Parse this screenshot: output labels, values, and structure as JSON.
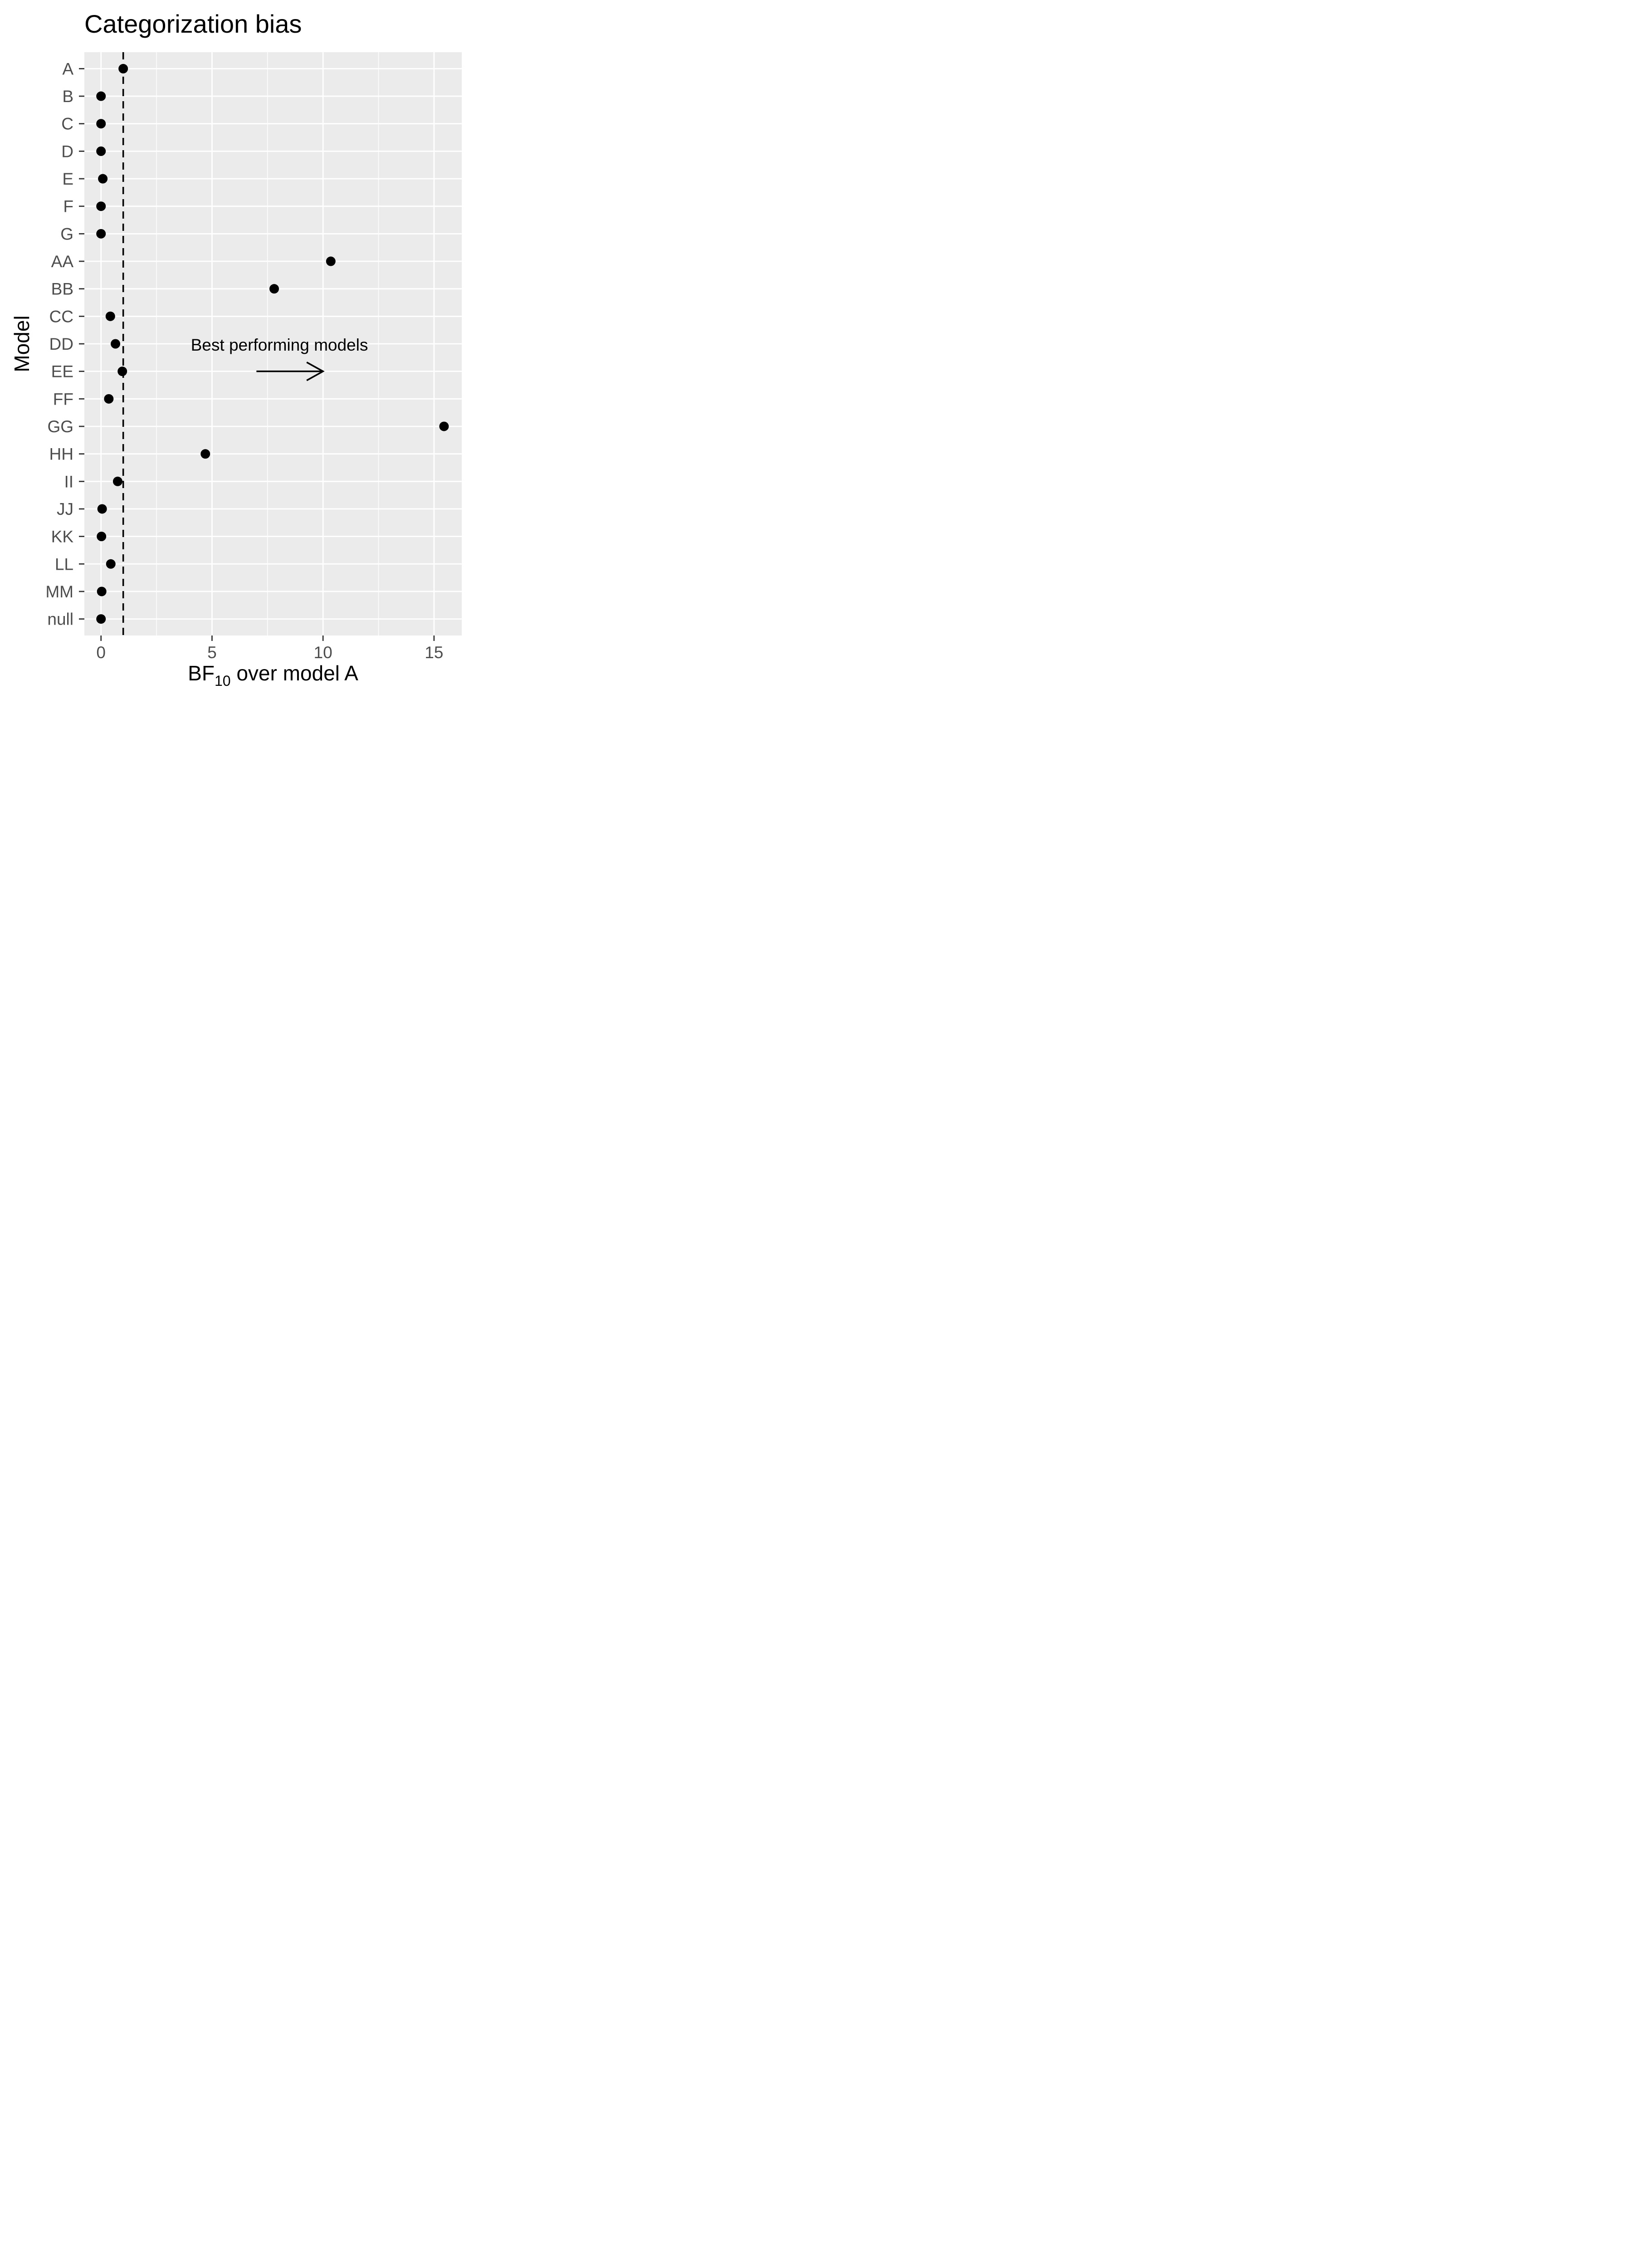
{
  "chart_data": {
    "type": "scatter",
    "title": "Categorization bias",
    "xlabel_main": "BF",
    "xlabel_sub": "10",
    "xlabel_rest": " over model A",
    "ylabel": "Model",
    "xlim": [
      -0.75,
      16.25
    ],
    "x_ticks": [
      0,
      5,
      10,
      15
    ],
    "x_tick_labels": [
      "0",
      "5",
      "10",
      "15"
    ],
    "reference_line_x": 1,
    "grid": true,
    "categories": [
      "A",
      "B",
      "C",
      "D",
      "E",
      "F",
      "G",
      "AA",
      "BB",
      "CC",
      "DD",
      "EE",
      "FF",
      "GG",
      "HH",
      "II",
      "JJ",
      "KK",
      "LL",
      "MM",
      "null"
    ],
    "values": [
      1.0,
      0.0,
      0.0,
      0.0,
      0.08,
      0.0,
      0.0,
      10.35,
      7.8,
      0.42,
      0.65,
      0.96,
      0.35,
      15.45,
      4.7,
      0.75,
      0.05,
      0.02,
      0.44,
      0.03,
      0.0
    ],
    "annotation": {
      "text": "Best performing models",
      "arrow_from_x": 7.0,
      "arrow_to_x": 10.0,
      "arrow_category": "EE"
    }
  }
}
